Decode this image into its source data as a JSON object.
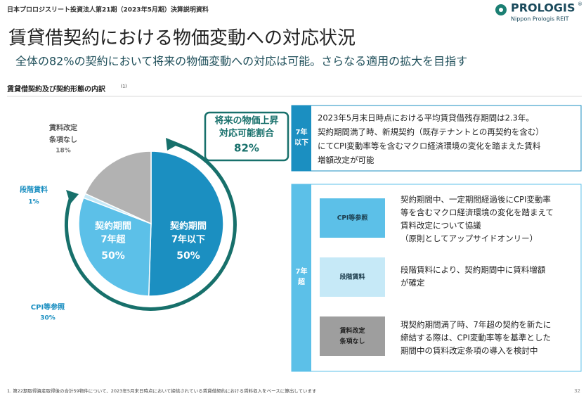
{
  "header": {
    "doc_title": "日本プロロジスリート投資法人第21期（2023年5月期）決算説明資料",
    "logo_name": "PROLOGIS",
    "logo_mark": "®",
    "logo_sub": "Nippon Prologis REIT"
  },
  "title": "賃貸借契約における物価変動への対応状況",
  "subtitle": "全体の82%の契約において将来の物価変動への対応は可能。さらなる適用の拡大を目指す",
  "section_title": "賃貸借契約及び契約形態の内訳",
  "section_note": "(1)",
  "chart_data": {
    "type": "pie",
    "categories": [
      [
        "契約期間",
        "7年以下"
      ],
      [
        "CPI等参照"
      ],
      [
        "段階賃料"
      ],
      [
        "賃料改定",
        "条項なし"
      ]
    ],
    "values": [
      50,
      30,
      1,
      18
    ],
    "value_labels": [
      "50%",
      "30%",
      "1%",
      "18%"
    ],
    "colors": [
      "#1b8fc1",
      "#5cc0e8",
      "#c6e9f7",
      "#b2b2b2"
    ],
    "annotations": [
      {
        "lines": [
          "契約期間",
          "7年超"
        ],
        "label": "50%"
      }
    ]
  },
  "callout": {
    "lines": [
      "将来の物価上昇",
      "対応可能割合"
    ],
    "value": "82%"
  },
  "panel_short": {
    "tag": [
      "7年",
      "以下"
    ],
    "lines": [
      "2023年5月末日時点における平均賃貸借残存期間は2.3年。",
      "契約期間満了時、新規契約（既存テナントとの再契約を含む）",
      "にてCPI変動率等を含むマクロ経済環境の変化を踏まえた賃料",
      "増額改定が可能"
    ]
  },
  "panel_long": {
    "tag": [
      "7年",
      "超"
    ],
    "items": [
      {
        "label": [
          "CPI等参照"
        ],
        "lines": [
          "契約期間中、一定期間経過後にCPI変動率",
          "等を含むマクロ経済環境の変化を踏まえて",
          "賃料改定について協議",
          "（原則としてアップサイドオンリー）"
        ]
      },
      {
        "label": [
          "段階賃料"
        ],
        "lines": [
          "段階賃料により、契約期間中に賃料増額",
          "が確定"
        ]
      },
      {
        "label": [
          "賃料改定",
          "条項なし"
        ],
        "lines": [
          "現契約期間満了時、7年超の契約を新たに",
          "締結する際は、CPI変動率等を基準とした",
          "期間中の賃料改定条項の導入を検討中"
        ]
      }
    ]
  },
  "footnote": "1.  第22期取得資産取得後の合計59物件について、2023年5月末日時点において締結されている賃貸借契約における賃料収入をベースに算出しています",
  "page_number": "32"
}
